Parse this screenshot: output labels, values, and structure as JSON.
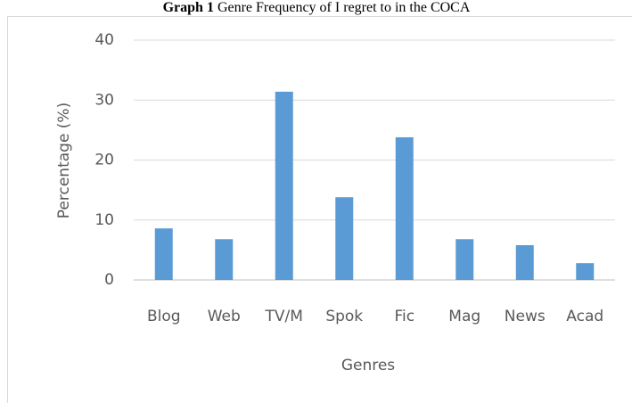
{
  "chart_data": {
    "type": "bar",
    "title_label": "Graph 1",
    "title": "Genre Frequency of I regret to in the COCA",
    "x_label": "Genres",
    "y_label": "Percentage (%)",
    "categories": [
      "Blog",
      "Web",
      "TV/M",
      "Spok",
      "Fic",
      "Mag",
      "News",
      "Acad"
    ],
    "values": [
      8.6,
      6.8,
      31.4,
      13.8,
      23.8,
      6.8,
      5.8,
      2.8
    ],
    "color": "#5b9bd5",
    "ylim": [
      0,
      40
    ],
    "yticks": [
      0,
      10,
      20,
      30,
      40
    ],
    "grid": true
  }
}
